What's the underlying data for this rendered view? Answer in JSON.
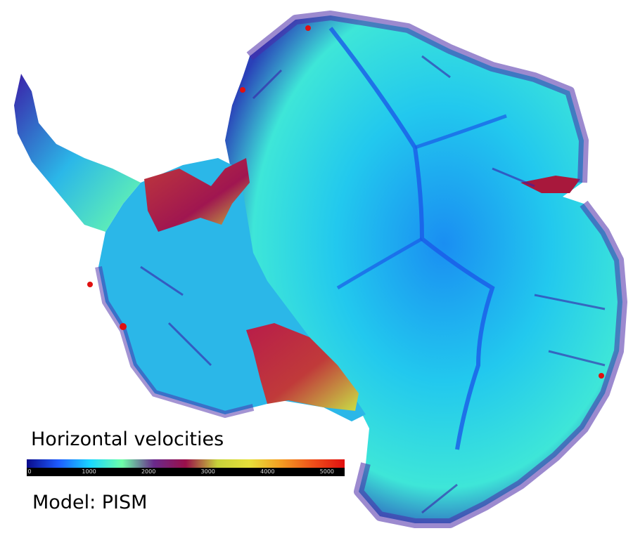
{
  "map": {
    "title": "Horizontal velocities",
    "model_label": "Model: PISM"
  },
  "colorbar": {
    "ticks": [
      "0",
      "1000",
      "2000",
      "3000",
      "4000",
      "5000"
    ],
    "tick_values": [
      0,
      1000,
      2000,
      3000,
      4000,
      5000
    ],
    "min": 0,
    "max": 5250,
    "colors": [
      "#0a0a8a",
      "#1e5cff",
      "#19d7ff",
      "#6dffa8",
      "#6a2a8c",
      "#9a0f4a",
      "#c8d23a",
      "#e6e03a",
      "#f59d22",
      "#f0501a",
      "#e01010"
    ]
  },
  "colors": {
    "ice_interior": "#22c8ee",
    "ice_slow": "#1a7cf0",
    "ice_margin": "#3a1fa8",
    "ice_shelf": "#a01650",
    "ice_fast": "#c8e046"
  }
}
